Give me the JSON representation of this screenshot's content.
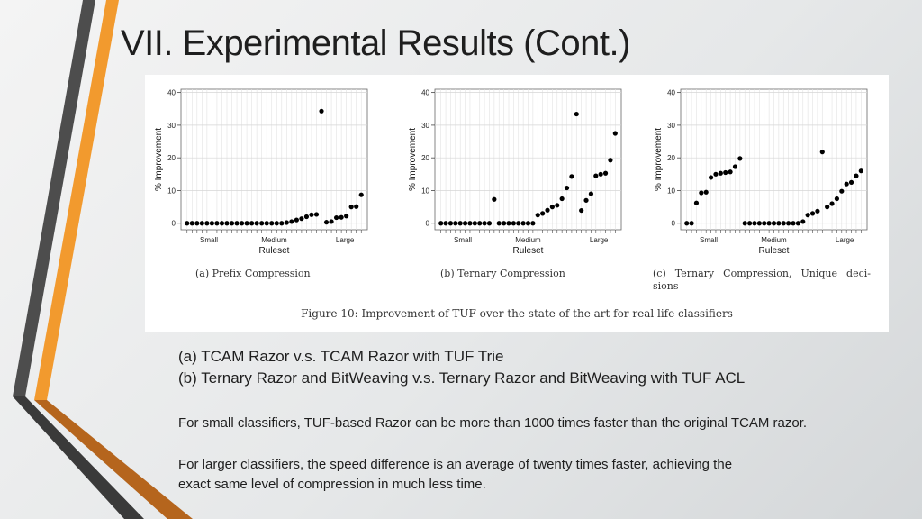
{
  "slide": {
    "title": "VII. Experimental Results (Cont.)",
    "accent_colors": {
      "orange": "#f29a2e",
      "dark_gray": "#4d4d4d",
      "brown": "#b5651d"
    }
  },
  "figure": {
    "caption": "Figure 10: Improvement of TUF over the state of the art for real life classifiers",
    "subcaptions": [
      "(a) Prefix Compression",
      "(b) Ternary Compression",
      "(c) Ternary Compression, Unique deci-sions"
    ]
  },
  "chart_data": [
    {
      "type": "scatter",
      "subcaption": "(a) Prefix Compression",
      "xlabel": "Ruleset",
      "ylabel": "% Improvement",
      "ylim": [
        -2,
        41
      ],
      "yticks": [
        0,
        10,
        20,
        30,
        40
      ],
      "xtick_labels": [
        "Small",
        "Medium",
        "Large"
      ],
      "grid": true,
      "values": [
        0,
        0,
        0,
        0,
        0,
        0,
        0,
        0,
        0,
        0,
        0,
        0,
        0,
        0,
        0,
        0,
        0,
        0,
        0,
        0,
        0.2,
        0.5,
        1.0,
        1.4,
        2.0,
        2.6,
        2.7,
        34.3,
        0.3,
        0.5,
        1.7,
        1.8,
        2.2,
        5.0,
        5.1,
        8.7
      ]
    },
    {
      "type": "scatter",
      "subcaption": "(b) Ternary Compression",
      "xlabel": "Ruleset",
      "ylabel": "% Improvement",
      "ylim": [
        -2,
        41
      ],
      "yticks": [
        0,
        10,
        20,
        30,
        40
      ],
      "xtick_labels": [
        "Small",
        "Medium",
        "Large"
      ],
      "grid": true,
      "values": [
        0,
        0,
        0,
        0,
        0,
        0,
        0,
        0,
        0,
        0,
        0,
        7.3,
        0,
        0,
        0,
        0,
        0,
        0,
        0,
        0,
        2.5,
        3.0,
        4.0,
        5.0,
        5.5,
        7.5,
        10.8,
        14.3,
        33.4,
        3.9,
        7.0,
        9.0,
        14.5,
        15.0,
        15.3,
        19.3,
        27.5
      ]
    },
    {
      "type": "scatter",
      "subcaption": "(c) Ternary Compression, Unique deci-sions",
      "xlabel": "Ruleset",
      "ylabel": "% Improvement",
      "ylim": [
        -2,
        41
      ],
      "yticks": [
        0,
        10,
        20,
        30,
        40
      ],
      "xtick_labels": [
        "Small",
        "Medium",
        "Large"
      ],
      "grid": true,
      "values": [
        0,
        0,
        6.2,
        9.3,
        9.5,
        14.0,
        15.0,
        15.3,
        15.5,
        15.7,
        17.3,
        19.8,
        0,
        0,
        0,
        0,
        0,
        0,
        0,
        0,
        0,
        0,
        0,
        0,
        0.5,
        2.5,
        3.0,
        3.7,
        21.8,
        5.0,
        6.0,
        7.5,
        9.8,
        12.0,
        12.5,
        14.5,
        16.0
      ]
    }
  ],
  "notes": {
    "line_a": "(a) TCAM Razor v.s. TCAM Razor with TUF Trie",
    "line_b": "(b) Ternary Razor and BitWeaving v.s. Ternary Razor and BitWeaving with TUF ACL",
    "para_1": "For small classifiers, TUF-based Razor can be more than 1000 times faster than the original TCAM razor.",
    "para_2_line_1": "For larger classifiers, the speed difference is an average of twenty times faster, achieving the",
    "para_2_line_2": "exact same level of compression in much less time."
  }
}
